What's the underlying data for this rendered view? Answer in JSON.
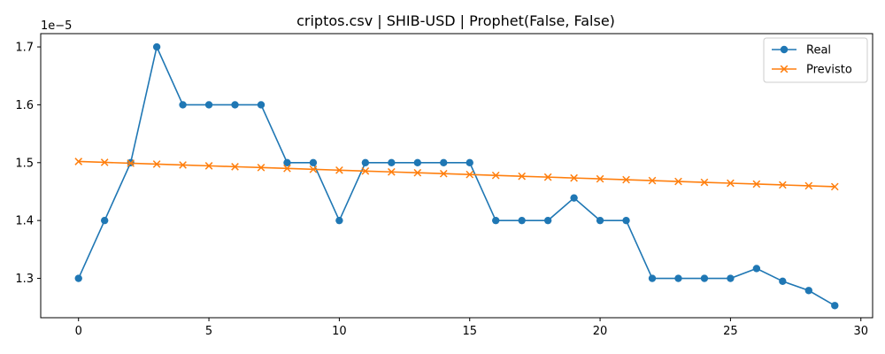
{
  "chart_data": {
    "type": "line",
    "title": "criptos.csv | SHIB-USD | Prophet(False, False)",
    "xlabel": "",
    "ylabel": "",
    "y_offset_label": "1e−5",
    "xlim": [
      -1.45,
      30.45
    ],
    "ylim": [
      1.232,
      1.723
    ],
    "x_ticks": [
      0,
      5,
      10,
      15,
      20,
      25,
      30
    ],
    "x_tick_labels": [
      "0",
      "5",
      "10",
      "15",
      "20",
      "25",
      "30"
    ],
    "y_ticks": [
      1.3,
      1.4,
      1.5,
      1.6,
      1.7
    ],
    "y_tick_labels": [
      "1.3",
      "1.4",
      "1.5",
      "1.6",
      "1.7"
    ],
    "grid": false,
    "legend_position": "top-right",
    "x": [
      0,
      1,
      2,
      3,
      4,
      5,
      6,
      7,
      8,
      9,
      10,
      11,
      12,
      13,
      14,
      15,
      16,
      17,
      18,
      19,
      20,
      21,
      22,
      23,
      24,
      25,
      26,
      27,
      28,
      29
    ],
    "series": [
      {
        "name": "Real",
        "color": "#1f77b4",
        "marker": "circle",
        "values": [
          1.3,
          1.4,
          1.5,
          1.7,
          1.6,
          1.6,
          1.6,
          1.6,
          1.5,
          1.5,
          1.4,
          1.5,
          1.5,
          1.5,
          1.5,
          1.5,
          1.4,
          1.4,
          1.4,
          1.439,
          1.4,
          1.4,
          1.3,
          1.3,
          1.3,
          1.3,
          1.317,
          1.295,
          1.279,
          1.253
        ]
      },
      {
        "name": "Previsto",
        "color": "#ff7f0e",
        "marker": "x",
        "values": [
          1.502,
          1.5005,
          1.499,
          1.4975,
          1.496,
          1.4945,
          1.493,
          1.4915,
          1.49,
          1.4885,
          1.487,
          1.4855,
          1.484,
          1.4825,
          1.481,
          1.4795,
          1.478,
          1.4765,
          1.475,
          1.4735,
          1.472,
          1.4705,
          1.469,
          1.4675,
          1.466,
          1.4645,
          1.463,
          1.4615,
          1.46,
          1.4585
        ]
      }
    ]
  }
}
